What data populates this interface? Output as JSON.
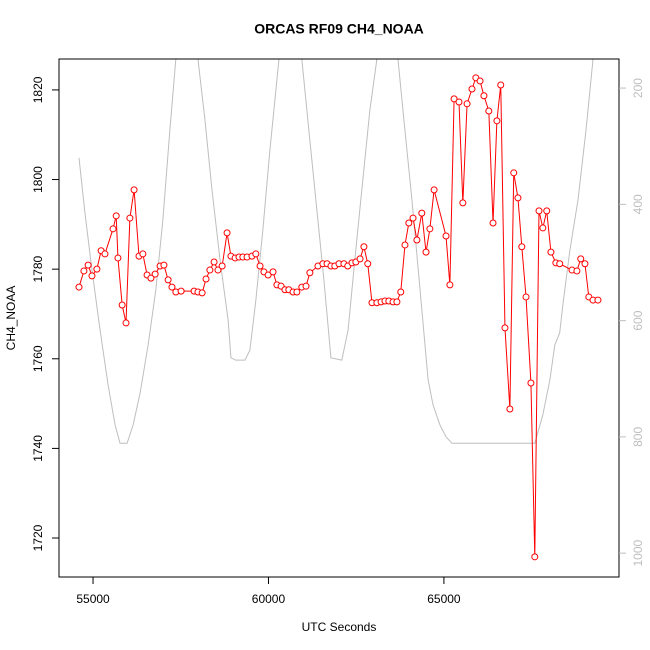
{
  "chart_data": {
    "type": "line",
    "title": "ORCAS RF09 CH4_NOAA",
    "x_label": "UTC Seconds",
    "y_label": "CH4_NOAA",
    "xlim": [
      54030,
      69990
    ],
    "xticks": [
      55000,
      60000,
      65000
    ],
    "ylim": [
      1711.3,
      1826.9
    ],
    "yticks": [
      1720,
      1740,
      1760,
      1780,
      1800,
      1820
    ],
    "y2lim": [
      1041,
      150
    ],
    "y2ticks": [
      200,
      400,
      600,
      800,
      1000
    ],
    "y2_color": "#bebebe",
    "series": [
      {
        "color": "#ff0000",
        "markers": true,
        "x": [
          54600,
          54740,
          54860,
          54970,
          55110,
          55230,
          55340,
          55570,
          55660,
          55710,
          55830,
          55940,
          56050,
          56170,
          56310,
          56420,
          56540,
          56650,
          56770,
          56910,
          57020,
          57140,
          57250,
          57360,
          57510,
          57880,
          57990,
          58110,
          58220,
          58330,
          58450,
          58560,
          58680,
          58820,
          58930,
          59050,
          59160,
          59270,
          59390,
          59530,
          59640,
          59760,
          59870,
          59990,
          60130,
          60240,
          60360,
          60470,
          60580,
          60700,
          60810,
          60950,
          61070,
          61180,
          61410,
          61550,
          61670,
          61780,
          61890,
          62010,
          62150,
          62260,
          62380,
          62490,
          62610,
          62720,
          62830,
          62950,
          63090,
          63210,
          63320,
          63430,
          63550,
          63660,
          63770,
          63890,
          64000,
          64120,
          64230,
          64370,
          64490,
          64600,
          64720,
          65060,
          65170,
          65290,
          65430,
          65540,
          65660,
          65800,
          65910,
          66030,
          66140,
          66280,
          66400,
          66510,
          66620,
          66740,
          66880,
          66990,
          67110,
          67220,
          67340,
          67480,
          67590,
          67710,
          67820,
          67930,
          68050,
          68190,
          68300,
          68650,
          68790,
          68900,
          69020,
          69130,
          69250,
          69390
        ],
        "values": [
          1776.0,
          1779.6,
          1780.9,
          1778.5,
          1780.0,
          1784.1,
          1783.4,
          1789.0,
          1791.9,
          1782.5,
          1772.0,
          1768.0,
          1791.4,
          1797.7,
          1782.9,
          1783.4,
          1778.7,
          1778.0,
          1778.9,
          1780.7,
          1780.9,
          1777.6,
          1776.0,
          1774.9,
          1775.1,
          1775.1,
          1774.9,
          1774.7,
          1777.8,
          1779.8,
          1781.6,
          1779.8,
          1780.7,
          1788.1,
          1782.9,
          1782.5,
          1782.7,
          1782.7,
          1782.7,
          1782.9,
          1783.4,
          1780.7,
          1779.4,
          1778.7,
          1779.4,
          1776.5,
          1776.2,
          1775.4,
          1775.4,
          1774.9,
          1774.9,
          1776.0,
          1776.2,
          1779.2,
          1780.7,
          1781.2,
          1781.2,
          1780.7,
          1780.7,
          1781.2,
          1781.2,
          1780.7,
          1781.4,
          1781.6,
          1782.3,
          1785.0,
          1781.2,
          1772.5,
          1772.5,
          1772.7,
          1772.9,
          1772.9,
          1772.7,
          1772.7,
          1774.9,
          1785.4,
          1790.3,
          1791.4,
          1786.5,
          1792.5,
          1783.8,
          1789.0,
          1797.7,
          1787.4,
          1776.5,
          1818.0,
          1817.3,
          1794.8,
          1816.9,
          1820.2,
          1822.7,
          1822.0,
          1818.7,
          1815.3,
          1790.3,
          1813.1,
          1821.1,
          1766.9,
          1748.8,
          1801.5,
          1795.9,
          1785.0,
          1773.8,
          1754.6,
          1715.8,
          1793.0,
          1789.2,
          1793.0,
          1783.8,
          1781.4,
          1781.2,
          1779.8,
          1779.6,
          1782.3,
          1781.2,
          1773.8,
          1773.1,
          1773.1
        ]
      },
      {
        "color": "#bebebe",
        "axis": "y2",
        "markers": false,
        "x": [
          54600,
          54770,
          54970,
          55200,
          55430,
          55630,
          55770,
          55970,
          56140,
          56340,
          56570,
          56790,
          56990,
          57190,
          57360,
          null,
          57990,
          58190,
          58390,
          58620,
          58850,
          58930,
          59070,
          59330,
          59470,
          59640,
          59840,
          60040,
          60300,
          null,
          60950,
          61150,
          61380,
          61580,
          61780,
          62090,
          62270,
          62460,
          62660,
          62890,
          63090,
          null,
          63690,
          63860,
          64090,
          64320,
          64550,
          64690,
          64890,
          65060,
          65230,
          67590,
          67820,
          68020,
          68160,
          68300,
          68390,
          68590,
          68820,
          69050,
          69250
        ],
        "values": [
          320,
          415,
          513,
          616,
          711,
          780,
          811,
          811,
          780,
          725,
          642,
          547,
          427,
          272,
          150,
          null,
          150,
          255,
          375,
          496,
          599,
          664,
          668,
          668,
          651,
          565,
          444,
          307,
          150,
          null,
          150,
          272,
          410,
          530,
          664,
          668,
          616,
          496,
          375,
          238,
          150,
          null,
          150,
          255,
          393,
          547,
          702,
          745,
          780,
          800,
          811,
          811,
          762,
          702,
          642,
          621,
          573,
          479,
          393,
          272,
          150
        ]
      }
    ]
  }
}
